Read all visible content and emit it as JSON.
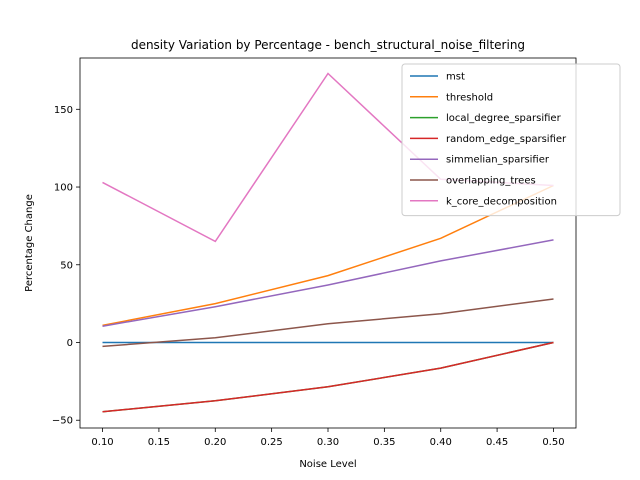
{
  "chart_data": {
    "type": "line",
    "title": "density Variation by Percentage - bench_structural_noise_filtering",
    "xlabel": "Noise Level",
    "ylabel": "Percentage Change",
    "x": [
      0.1,
      0.2,
      0.3,
      0.4,
      0.5
    ],
    "xlim": [
      0.08,
      0.52
    ],
    "ylim": [
      -55,
      183
    ],
    "xticks": [
      "0.10",
      "0.15",
      "0.20",
      "0.25",
      "0.30",
      "0.35",
      "0.40",
      "0.45",
      "0.50"
    ],
    "xtick_values": [
      0.1,
      0.15,
      0.2,
      0.25,
      0.3,
      0.35,
      0.4,
      0.45,
      0.5
    ],
    "yticks": [
      "−50",
      "0",
      "50",
      "100",
      "150"
    ],
    "ytick_values": [
      -50,
      0,
      50,
      100,
      150
    ],
    "grid": false,
    "legend_position": "top-right",
    "series": [
      {
        "name": "mst",
        "color": "#1f77b4",
        "values": [
          0,
          0,
          0,
          0,
          0
        ]
      },
      {
        "name": "threshold",
        "color": "#ff7f0e",
        "values": [
          11,
          25,
          43,
          67,
          101
        ]
      },
      {
        "name": "local_degree_sparsifier",
        "color": "#2ca02c",
        "values": [
          -44.5,
          -37.5,
          -28.5,
          -16.5,
          0
        ]
      },
      {
        "name": "random_edge_sparsifier",
        "color": "#d62728",
        "values": [
          -44.5,
          -37.5,
          -28.5,
          -16.5,
          0
        ]
      },
      {
        "name": "simmelian_sparsifier",
        "color": "#9467bd",
        "values": [
          10.5,
          23,
          37,
          52.5,
          66
        ]
      },
      {
        "name": "overlapping_trees",
        "color": "#8c564b",
        "values": [
          -2.5,
          3,
          12,
          18.5,
          28
        ]
      },
      {
        "name": "k_core_decomposition",
        "color": "#e377c2",
        "values": [
          103,
          65,
          173,
          105,
          101
        ]
      }
    ]
  }
}
